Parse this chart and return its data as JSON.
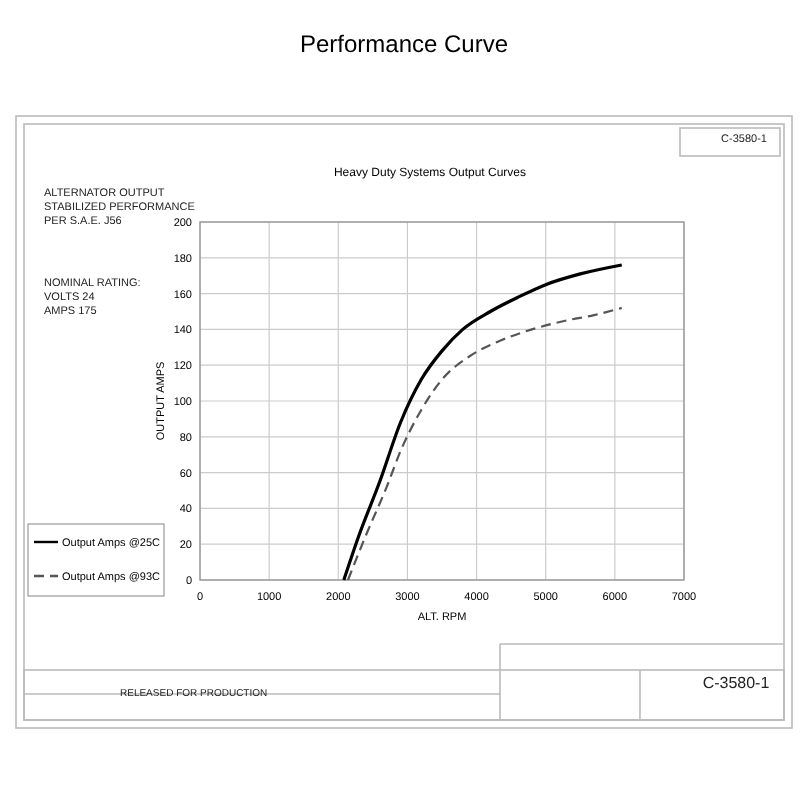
{
  "chart_data": {
    "type": "line",
    "title": "Performance Curve",
    "subtitle": "Heavy Duty Systems Output Curves",
    "xlabel": "ALT. RPM",
    "ylabel": "OUTPUT AMPS",
    "annotations": [
      "ALTERNATOR OUTPUT",
      "STABILIZED PERFORMANCE",
      "PER S.A.E. J56",
      "NOMINAL RATING:",
      "VOLTS 24",
      "AMPS 175",
      "C-3580-1",
      "RELEASED FOR PRODUCTION",
      "C-3580-1"
    ],
    "series": [
      {
        "name": "Output Amps @25C",
        "color": "#000000",
        "line_style": "solid",
        "x": [
          2080,
          2300,
          2600,
          2900,
          3200,
          3500,
          3800,
          4200,
          4600,
          5000,
          5500,
          6100
        ],
        "values": [
          0,
          25,
          55,
          88,
          112,
          128,
          140,
          150,
          158,
          165,
          171,
          176
        ]
      },
      {
        "name": "Output Amps @93C",
        "color": "#555555",
        "line_style": "dashed",
        "x": [
          2140,
          2400,
          2700,
          2900,
          3200,
          3500,
          3900,
          4300,
          4800,
          5300,
          5700,
          6100
        ],
        "values": [
          0,
          25,
          52,
          72,
          95,
          112,
          125,
          133,
          140,
          145,
          148,
          152
        ]
      }
    ],
    "xlim": [
      0,
      7000
    ],
    "xticks": [
      0,
      1000,
      2000,
      3000,
      4000,
      5000,
      6000,
      7000
    ],
    "ylim": [
      0,
      200
    ],
    "yticks": [
      0,
      20,
      40,
      60,
      80,
      100,
      120,
      140,
      160,
      180,
      200
    ],
    "grid": true,
    "legend": "bottom left"
  }
}
